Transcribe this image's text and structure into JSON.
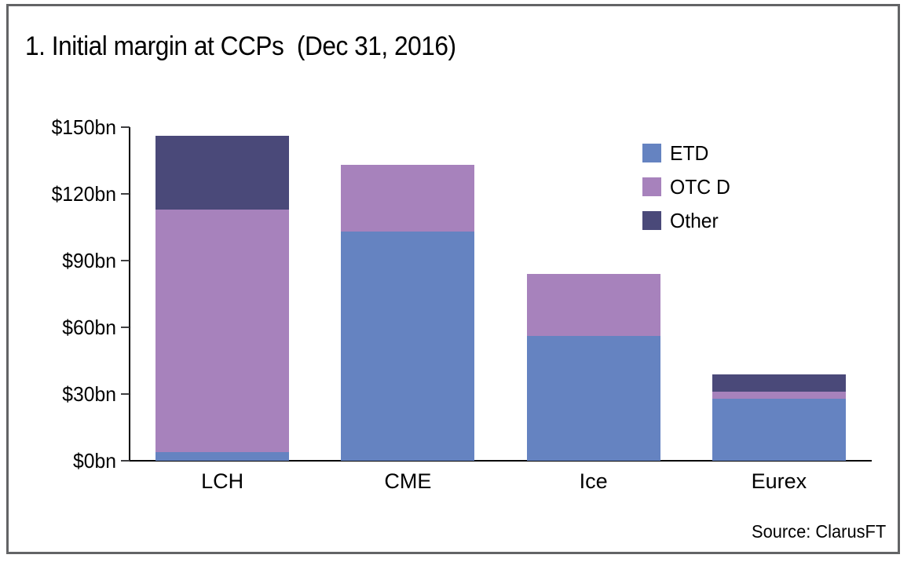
{
  "title": "1. Initial margin at CCPs  (Dec 31, 2016)",
  "source": "Source: ClarusFT",
  "colors": {
    "background": "#ffffff",
    "frame_border": "#636466",
    "axis": "#000000",
    "etd": "#6583c1",
    "otc_d": "#a782bc",
    "other": "#4a4979"
  },
  "chart_data": {
    "type": "bar",
    "stacked": true,
    "title": "1. Initial margin at CCPs  (Dec 31, 2016)",
    "xlabel": "",
    "ylabel": "",
    "unit": "$bn",
    "categories": [
      "LCH",
      "CME",
      "Ice",
      "Eurex"
    ],
    "series": [
      {
        "name": "ETD",
        "color": "#6583c1",
        "values": [
          4,
          103,
          56,
          28
        ]
      },
      {
        "name": "OTC D",
        "color": "#a782bc",
        "values": [
          109,
          30,
          28,
          3
        ]
      },
      {
        "name": "Other",
        "color": "#4a4979",
        "values": [
          33,
          0,
          0,
          8
        ]
      }
    ],
    "totals": [
      146,
      133,
      84,
      39
    ],
    "ylim": [
      0,
      150
    ],
    "yticks": [
      {
        "value": 0,
        "label": "$0bn"
      },
      {
        "value": 30,
        "label": "$30bn"
      },
      {
        "value": 60,
        "label": "$60bn"
      },
      {
        "value": 90,
        "label": "$90bn"
      },
      {
        "value": 120,
        "label": "$120bn"
      },
      {
        "value": 150,
        "label": "$150bn"
      }
    ],
    "grid": false,
    "legend_position": "top-right"
  }
}
